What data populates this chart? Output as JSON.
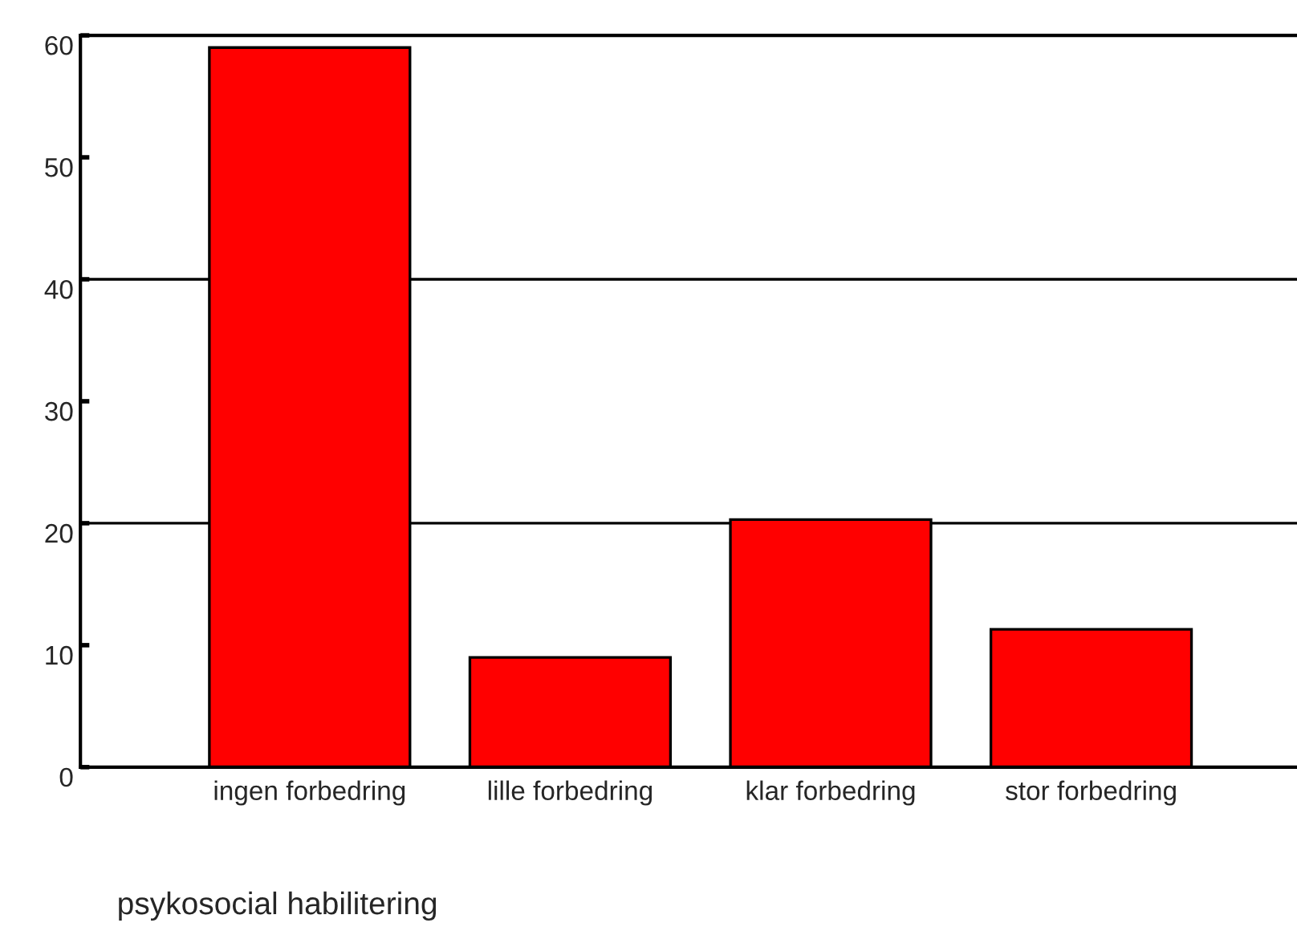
{
  "chart_data": {
    "type": "bar",
    "xlabel": "psykosocial habilitering",
    "categories": [
      "ingen forbedring",
      "lille forbedring",
      "klar forbedring",
      "stor forbedring"
    ],
    "values": [
      59,
      9,
      20.3,
      11.3
    ],
    "color": "#ff0000",
    "ylim": [
      0,
      60
    ],
    "yticks": [
      0,
      10,
      20,
      30,
      40,
      50,
      60
    ],
    "grid": false,
    "ref_lines": [
      {
        "axis": "y",
        "value": 20,
        "color": "#000000"
      },
      {
        "axis": "y",
        "value": 40,
        "color": "#000000"
      }
    ]
  }
}
